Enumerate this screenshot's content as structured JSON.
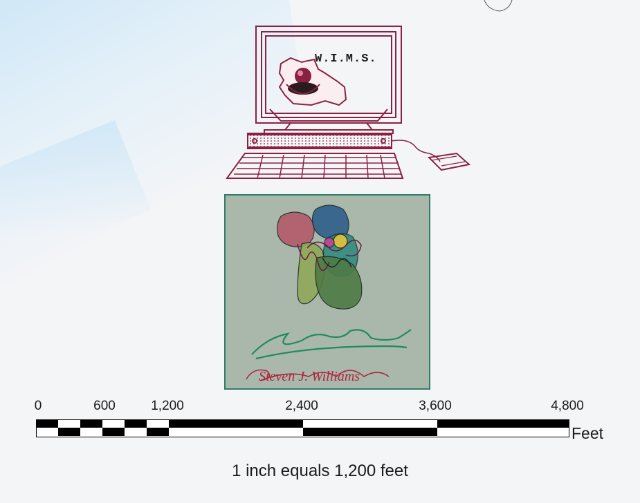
{
  "logo": {
    "name": "W.I.M.S.",
    "accent_color": "#8b2141"
  },
  "seal": {
    "background_color": "#a9b8ab",
    "border_color": "#2d7d67",
    "signature_top_color": "#1f8a63",
    "signature_bottom_color": "#b0273f",
    "signature_bottom_text": "Steven J. Williams"
  },
  "scale_bar": {
    "ticks": [
      "0",
      "600",
      "1,200",
      "2,400",
      "3,600",
      "4,800"
    ],
    "unit": "Feet",
    "statement": "1 inch equals 1,200 feet"
  }
}
